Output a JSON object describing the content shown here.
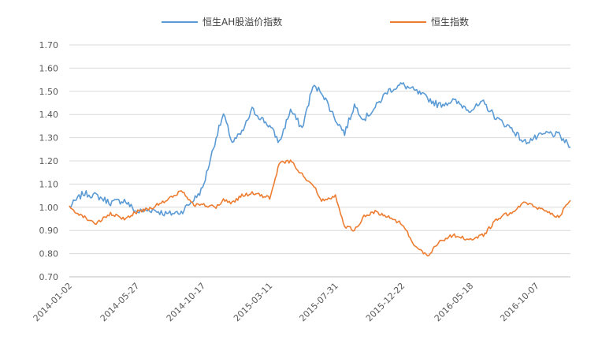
{
  "chart_data": {
    "type": "line",
    "title": "",
    "xlabel": "",
    "ylabel": "",
    "ylim": [
      0.7,
      1.7
    ],
    "y_ticks": [
      "0.70",
      "0.80",
      "0.90",
      "1.00",
      "1.10",
      "1.20",
      "1.30",
      "1.40",
      "1.50",
      "1.60",
      "1.70"
    ],
    "x_ticks": [
      "2014-01-02",
      "2014-05-27",
      "2014-10-17",
      "2015-03-11",
      "2015-07-31",
      "2015-12-22",
      "2016-05-18",
      "2016-10-07"
    ],
    "grid": true,
    "legend_position": "top",
    "x": [
      "2014-01-02",
      "2014-02-01",
      "2014-03-01",
      "2014-04-01",
      "2014-05-01",
      "2014-05-27",
      "2014-07-01",
      "2014-08-01",
      "2014-09-01",
      "2014-10-01",
      "2014-10-17",
      "2014-11-15",
      "2014-12-01",
      "2014-12-20",
      "2015-01-10",
      "2015-02-01",
      "2015-03-11",
      "2015-04-01",
      "2015-04-25",
      "2015-05-20",
      "2015-06-12",
      "2015-07-01",
      "2015-07-31",
      "2015-08-20",
      "2015-09-10",
      "2015-10-01",
      "2015-10-25",
      "2015-11-20",
      "2015-12-22",
      "2016-01-20",
      "2016-02-15",
      "2016-03-10",
      "2016-04-10",
      "2016-05-18",
      "2016-06-15",
      "2016-07-15",
      "2016-08-15",
      "2016-09-10",
      "2016-10-07",
      "2016-11-01",
      "2016-11-25",
      "2016-12-20"
    ],
    "series": [
      {
        "name": "恒生AH股溢价指数",
        "color": "#5b9bd5",
        "values": [
          1.0,
          1.06,
          1.05,
          1.02,
          1.03,
          0.98,
          0.99,
          0.97,
          0.98,
          1.04,
          1.08,
          1.3,
          1.4,
          1.28,
          1.32,
          1.42,
          1.35,
          1.28,
          1.42,
          1.34,
          1.52,
          1.5,
          1.38,
          1.32,
          1.44,
          1.38,
          1.43,
          1.5,
          1.53,
          1.5,
          1.47,
          1.44,
          1.46,
          1.42,
          1.45,
          1.38,
          1.34,
          1.28,
          1.3,
          1.32,
          1.31,
          1.26
        ]
      },
      {
        "name": "恒生指数",
        "color": "#ed7d31",
        "values": [
          1.0,
          0.96,
          0.93,
          0.97,
          0.95,
          0.98,
          1.0,
          1.03,
          1.07,
          1.01,
          1.01,
          1.0,
          1.03,
          1.02,
          1.05,
          1.06,
          1.04,
          1.19,
          1.2,
          1.14,
          1.1,
          1.03,
          1.05,
          0.92,
          0.9,
          0.96,
          0.98,
          0.96,
          0.93,
          0.83,
          0.79,
          0.85,
          0.88,
          0.86,
          0.88,
          0.95,
          0.98,
          1.02,
          1.0,
          0.98,
          0.96,
          1.03
        ]
      }
    ]
  }
}
